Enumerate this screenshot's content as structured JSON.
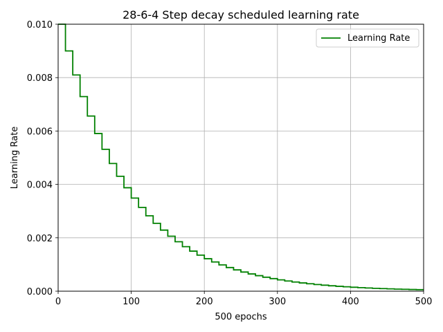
{
  "chart_data": {
    "type": "line",
    "title": "28-6-4 Step decay scheduled learning rate",
    "xlabel": "500 epochs",
    "ylabel": "Learning Rate",
    "xlim": [
      0,
      500
    ],
    "ylim": [
      0,
      0.01
    ],
    "x_ticks": [
      0,
      100,
      200,
      300,
      400,
      500
    ],
    "x_tick_labels": [
      "0",
      "100",
      "200",
      "300",
      "400",
      "500"
    ],
    "y_ticks": [
      0,
      0.002,
      0.004,
      0.006,
      0.008,
      0.01
    ],
    "y_tick_labels": [
      "0.000",
      "0.002",
      "0.004",
      "0.006",
      "0.008",
      "0.010"
    ],
    "grid": true,
    "legend_position": "top-right",
    "series": [
      {
        "name": "Learning Rate",
        "color": "#008000",
        "step_epochs": 10,
        "steps": [
          0.01,
          0.009,
          0.0081,
          0.00729,
          0.006561,
          0.0059049,
          0.00531441,
          0.004783,
          0.0043047,
          0.0038742,
          0.00348678,
          0.00313811,
          0.0028243,
          0.00254187,
          0.00228768,
          0.00205891,
          0.00185302,
          0.00166772,
          0.00150095,
          0.00135085,
          0.00121577,
          0.00109419,
          0.000984771,
          0.000886294,
          0.000797664,
          0.000717898,
          0.000646108,
          0.000581497,
          0.000523348,
          0.000471013,
          0.000423912,
          0.00038152,
          0.000343368,
          0.000309032,
          0.000278128,
          0.000250316,
          0.000225284,
          0.000202756,
          0.00018248,
          0.000164232,
          0.000147809,
          0.000133028,
          0.000119725,
          0.000107753,
          9.69774e-05,
          8.72796e-05,
          7.85517e-05,
          7.06965e-05,
          6.36269e-05,
          5.72642e-05
        ]
      }
    ]
  }
}
